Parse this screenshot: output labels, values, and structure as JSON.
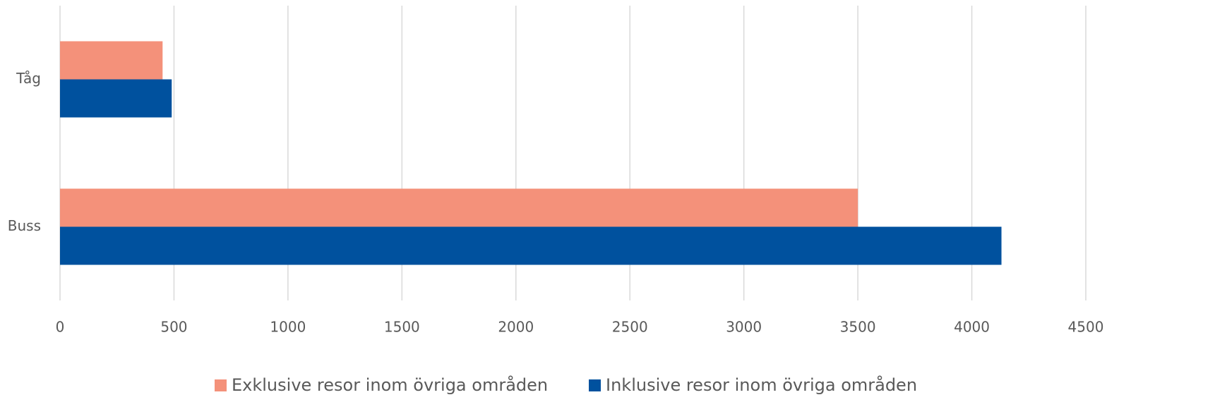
{
  "chart_data": {
    "type": "barh",
    "categories": [
      "Tåg",
      "Buss"
    ],
    "series": [
      {
        "name": "Exklusive resor inom övriga områden",
        "color": "#f4917a",
        "values": [
          450,
          3500
        ]
      },
      {
        "name": "Inklusive resor inom övriga områden",
        "color": "#00519e",
        "values": [
          490,
          4130
        ]
      }
    ],
    "xlim": [
      0,
      4500
    ],
    "xticks": [
      0,
      500,
      1000,
      1500,
      2000,
      2500,
      3000,
      3500,
      4000,
      4500
    ],
    "grid": true,
    "legend": "bottom"
  }
}
